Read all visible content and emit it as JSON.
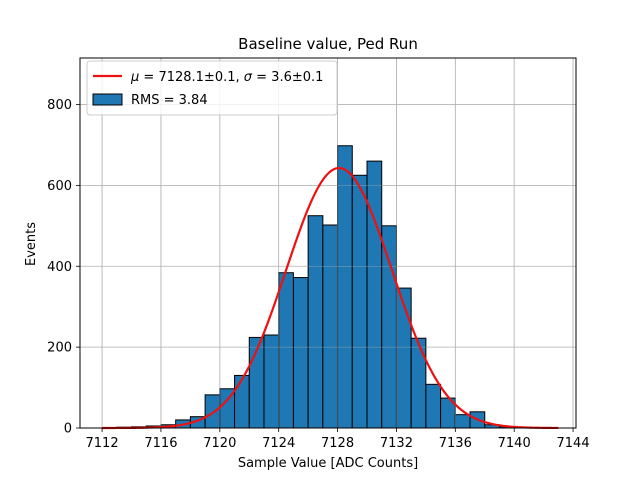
{
  "chart_data": {
    "type": "bar",
    "title": "Baseline value, Ped Run",
    "xlabel": "Sample Value [ADC Counts]",
    "ylabel": "Events",
    "xlim": [
      7110.5,
      7144.2
    ],
    "ylim": [
      0,
      915
    ],
    "xticks": [
      7112,
      7116,
      7120,
      7124,
      7128,
      7132,
      7136,
      7140,
      7144
    ],
    "yticks": [
      0,
      200,
      400,
      600,
      800
    ],
    "grid": true,
    "legend_position": "top-left",
    "bin_width": 1,
    "bins": [
      {
        "x0": 7113,
        "value": 2
      },
      {
        "x0": 7114,
        "value": 3
      },
      {
        "x0": 7115,
        "value": 5
      },
      {
        "x0": 7116,
        "value": 8
      },
      {
        "x0": 7117,
        "value": 20
      },
      {
        "x0": 7118,
        "value": 28
      },
      {
        "x0": 7119,
        "value": 82
      },
      {
        "x0": 7120,
        "value": 97
      },
      {
        "x0": 7121,
        "value": 130
      },
      {
        "x0": 7122,
        "value": 224
      },
      {
        "x0": 7123,
        "value": 230
      },
      {
        "x0": 7124,
        "value": 384
      },
      {
        "x0": 7125,
        "value": 372
      },
      {
        "x0": 7126,
        "value": 525
      },
      {
        "x0": 7127,
        "value": 502
      },
      {
        "x0": 7128,
        "value": 698
      },
      {
        "x0": 7129,
        "value": 625
      },
      {
        "x0": 7130,
        "value": 660
      },
      {
        "x0": 7131,
        "value": 500
      },
      {
        "x0": 7132,
        "value": 346
      },
      {
        "x0": 7133,
        "value": 222
      },
      {
        "x0": 7134,
        "value": 108
      },
      {
        "x0": 7135,
        "value": 74
      },
      {
        "x0": 7136,
        "value": 33
      },
      {
        "x0": 7137,
        "value": 40
      },
      {
        "x0": 7138,
        "value": 8
      },
      {
        "x0": 7139,
        "value": 3
      }
    ],
    "fit": {
      "type": "gaussian",
      "mu": 7128.1,
      "sigma": 3.6,
      "amplitude": 643,
      "x_range": [
        7112,
        7143
      ]
    },
    "colors": {
      "bar": "#1f77b4",
      "bar_edge": "#000000",
      "fit": "#ee1111",
      "grid": "#b0b0b0"
    },
    "legend": [
      {
        "label_prefix": "μ",
        "label_mid": " = 7128.1±0.1, ",
        "label_sigma": "σ",
        "label_suffix": " = 3.6±0.1",
        "kind": "line"
      },
      {
        "label": "RMS = 3.84",
        "kind": "patch"
      }
    ]
  }
}
